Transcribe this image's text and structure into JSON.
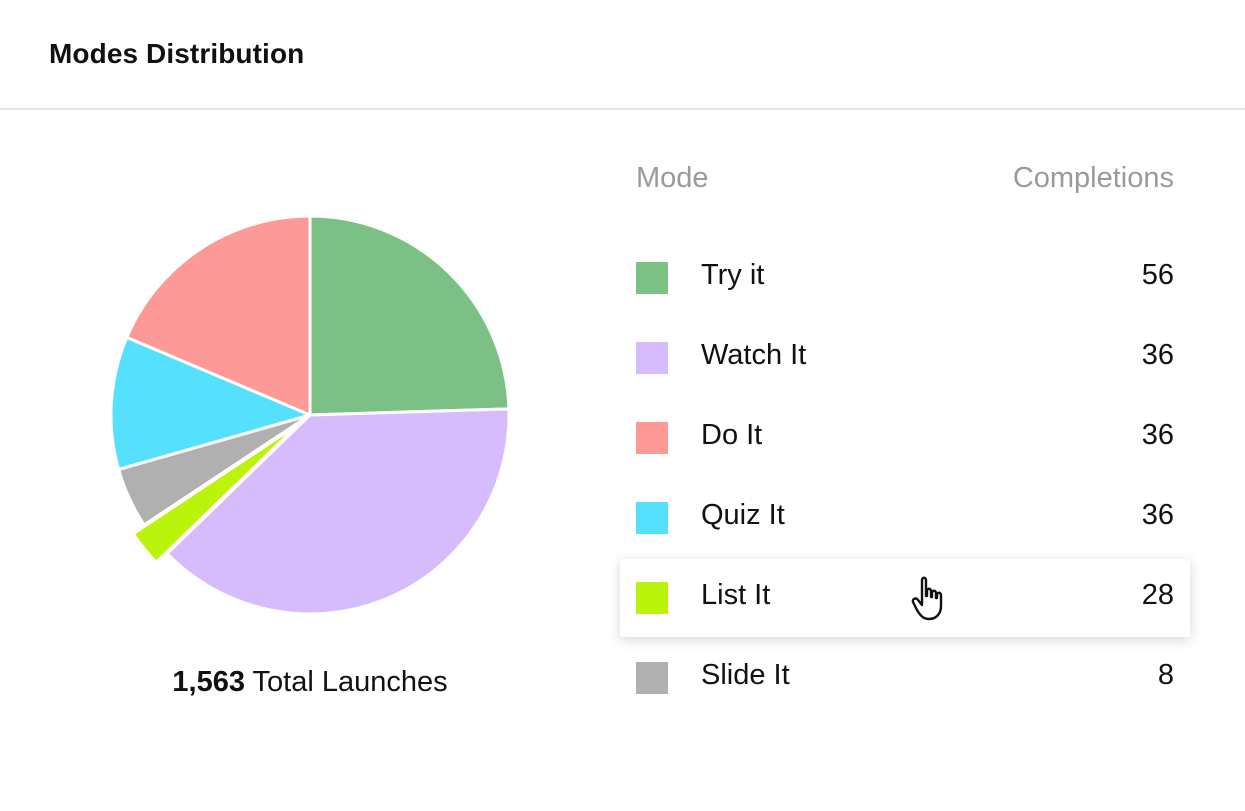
{
  "header": {
    "title": "Modes Distribution"
  },
  "summary": {
    "total_value": "1,563",
    "total_label": "Total Launches"
  },
  "table": {
    "col_mode": "Mode",
    "col_completions": "Completions",
    "rows": [
      {
        "label": "Try it",
        "value": "56",
        "color": "#7bc185"
      },
      {
        "label": "Watch It",
        "value": "36",
        "color": "#d7bcfd"
      },
      {
        "label": "Do It",
        "value": "36",
        "color": "#fd9a98"
      },
      {
        "label": "Quiz It",
        "value": "36",
        "color": "#55e0fd"
      },
      {
        "label": "List It",
        "value": "28",
        "color": "#bbf40b"
      },
      {
        "label": "Slide It",
        "value": "8",
        "color": "#b0b0b0"
      }
    ],
    "hovered_row": "List It"
  },
  "chart_data": {
    "type": "pie",
    "categories": [
      "Try it",
      "Watch It",
      "List It",
      "Slide It",
      "Quiz It",
      "Do It"
    ],
    "values": [
      25,
      39,
      3,
      5,
      11,
      19
    ],
    "unit": "percent of pie (estimated)",
    "colors": [
      "#7bc185",
      "#d7bcfd",
      "#bbf40b",
      "#b0b0b0",
      "#55e0fd",
      "#fd9a98"
    ],
    "highlighted": "List It"
  }
}
